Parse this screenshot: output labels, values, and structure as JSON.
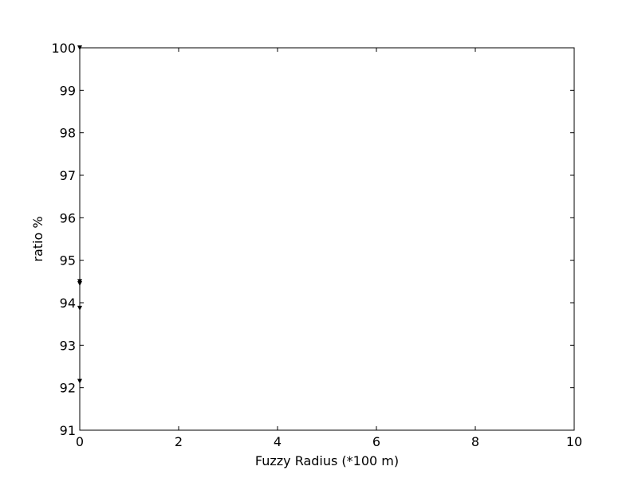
{
  "chart_data": {
    "type": "scatter",
    "xlabel": "Fuzzy Radius (*100 m)",
    "ylabel": "ratio %",
    "xlim": [
      0,
      10
    ],
    "ylim": [
      91,
      100
    ],
    "x_ticks": [
      "0",
      "2",
      "4",
      "6",
      "8",
      "10"
    ],
    "y_ticks": [
      "91",
      "92",
      "93",
      "94",
      "95",
      "96",
      "97",
      "98",
      "99",
      "100"
    ],
    "grid": false,
    "series": [
      {
        "marker": "triangle-down",
        "color": "#000000",
        "points": [
          {
            "x": 0,
            "y": 100.0
          },
          {
            "x": 0,
            "y": 94.5
          },
          {
            "x": 0,
            "y": 94.45
          },
          {
            "x": 0,
            "y": 93.87
          },
          {
            "x": 0,
            "y": 92.15
          }
        ]
      }
    ]
  }
}
